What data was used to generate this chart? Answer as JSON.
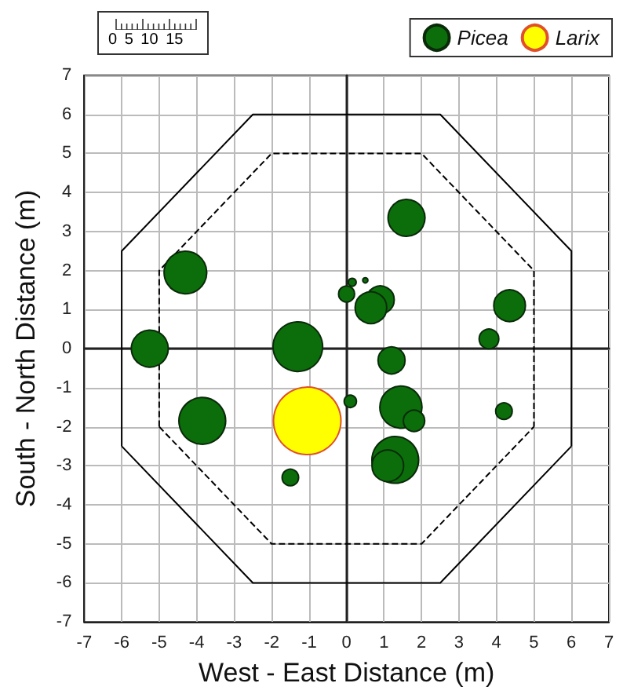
{
  "chart_data": {
    "type": "bubble",
    "xlabel": "West - East Distance (m)",
    "ylabel": "South - North Distance (m)",
    "xlim": [
      -7,
      7
    ],
    "ylim": [
      -7,
      7
    ],
    "xticks": [
      -7,
      -6,
      -5,
      -4,
      -3,
      -2,
      -1,
      0,
      1,
      2,
      3,
      4,
      5,
      6,
      7
    ],
    "yticks": [
      -7,
      -6,
      -5,
      -4,
      -3,
      -2,
      -1,
      0,
      1,
      2,
      3,
      4,
      5,
      6,
      7
    ],
    "grid": true,
    "legend": "top right",
    "annotations": [
      "0 5 10 15"
    ],
    "series": [
      {
        "name": "Picea",
        "color": "#0b6e0b",
        "x": [
          -4.3,
          -5.25,
          -1.3,
          -3.85,
          -1.5,
          1.6,
          0.15,
          0.5,
          0,
          0.9,
          0.65,
          4.35,
          3.8,
          1.2,
          0.1,
          1.45,
          1.8,
          4.2,
          1.3,
          1.1
        ],
        "values": [
          1.95,
          0,
          0.05,
          -1.85,
          -3.3,
          3.35,
          1.7,
          1.75,
          1.4,
          1.25,
          1.05,
          1.1,
          0.25,
          -0.3,
          -1.35,
          -1.5,
          -1.85,
          -1.6,
          -2.85,
          -3
        ],
        "sizes": [
          0.4,
          0.3,
          0.54,
          0.48,
          0.06,
          0.3,
          0.014,
          0.006,
          0.056,
          0.17,
          0.22,
          0.22,
          0.085,
          0.16,
          0.033,
          0.39,
          0.1,
          0.06,
          0.48,
          0.22
        ]
      },
      {
        "name": "Larix",
        "color": "#ffff00",
        "x": [
          -1.05
        ],
        "values": [
          -1.85
        ],
        "sizes": [
          1
        ]
      },
      {
        "type": "line",
        "color": "#000000",
        "line_style": "solid",
        "x": [
          -6,
          -6,
          -2.5,
          2.5,
          6,
          6
        ],
        "values": [
          -2.5,
          2.5,
          6,
          6,
          2.5,
          -2.5
        ]
      },
      {
        "type": "line",
        "color": "#000000",
        "line_style": "solid",
        "x": [
          -6,
          -2.5,
          2.5,
          6
        ],
        "values": [
          -2.5,
          -6,
          -6,
          -2.5
        ]
      },
      {
        "type": "line",
        "color": "#000000",
        "line_style": "dashed",
        "x": [
          -5,
          -5,
          -2,
          2,
          5,
          5
        ],
        "values": [
          -2,
          2,
          5,
          5,
          2,
          -2
        ]
      },
      {
        "type": "line",
        "color": "#000000",
        "line_style": "dashed",
        "x": [
          -5,
          -2,
          2,
          5
        ],
        "values": [
          -2,
          -5,
          -5,
          -2
        ]
      }
    ]
  }
}
